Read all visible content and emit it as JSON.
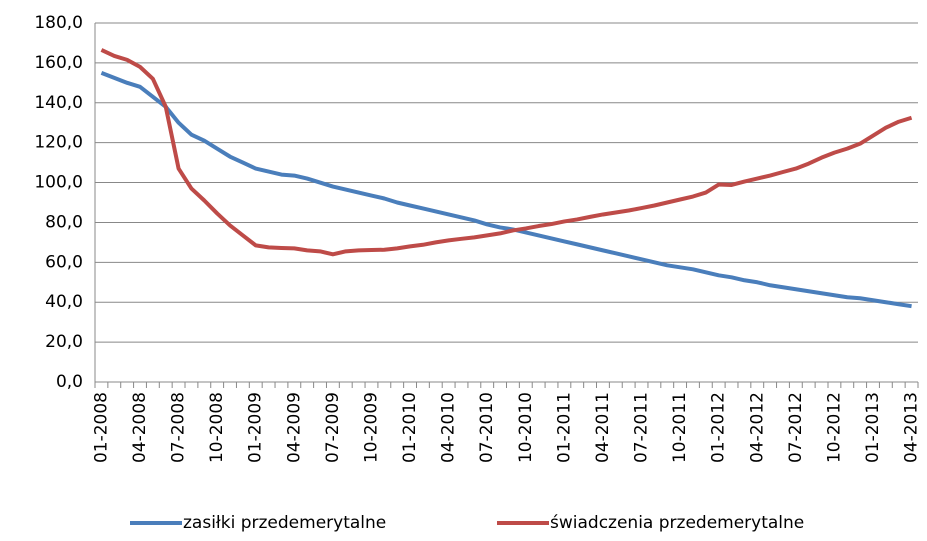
{
  "chart_data": {
    "type": "line",
    "categories": [
      "01-2008",
      null,
      null,
      "04-2008",
      null,
      null,
      "07-2008",
      null,
      null,
      "10-2008",
      null,
      null,
      "01-2009",
      null,
      null,
      "04-2009",
      null,
      null,
      "07-2009",
      null,
      null,
      "10-2009",
      null,
      null,
      "01-2010",
      null,
      null,
      "04-2010",
      null,
      null,
      "07-2010",
      null,
      null,
      "10-2010",
      null,
      null,
      "01-2011",
      null,
      null,
      "04-2011",
      null,
      null,
      "07-2011",
      null,
      null,
      "10-2011",
      null,
      null,
      "01-2012",
      null,
      null,
      "04-2012",
      null,
      null,
      "07-2012",
      null,
      null,
      "10-2012",
      null,
      null,
      "01-2013",
      null,
      null,
      "04-2013"
    ],
    "series": [
      {
        "name": "zasiłki przedemerytalne",
        "color": "#4a7ebb",
        "values": [
          155,
          152.5,
          150,
          148,
          143,
          138,
          130,
          124,
          121,
          117,
          113,
          110,
          107,
          105.5,
          104,
          103.5,
          102,
          100,
          98,
          96.5,
          95,
          93.5,
          92,
          90,
          88.5,
          87,
          85.5,
          84,
          82.5,
          81,
          79,
          77.5,
          76.5,
          75,
          73.5,
          72,
          70.5,
          69,
          67.5,
          66,
          64.5,
          63,
          61.5,
          60,
          58.5,
          57.5,
          56.5,
          55,
          53.5,
          52.5,
          51,
          50,
          48.5,
          47.5,
          46.5,
          45.5,
          44.5,
          43.5,
          42.5,
          42,
          41,
          40,
          39,
          38
        ]
      },
      {
        "name": "świadczenia przedemerytalne",
        "color": "#be4b48",
        "values": [
          166.5,
          163.5,
          161.5,
          158,
          152,
          138,
          107,
          97,
          91,
          84.5,
          78.5,
          73.5,
          68.5,
          67.5,
          67.2,
          67,
          66,
          65.5,
          64,
          65.5,
          66,
          66.2,
          66.3,
          67,
          68,
          68.8,
          70,
          71,
          71.8,
          72.5,
          73.5,
          74.5,
          76,
          77,
          78.2,
          79.2,
          80.5,
          81.5,
          82.8,
          84,
          85,
          86,
          87.2,
          88.5,
          90,
          91.5,
          93,
          95,
          99,
          98.8,
          100.5,
          102,
          103.5,
          105.3,
          107,
          109.5,
          112.5,
          115,
          117,
          119.5,
          123.5,
          127.5,
          130.5,
          132.5
        ]
      }
    ],
    "ylim": [
      0,
      180
    ],
    "yticks": [
      {
        "value": 0,
        "label": "0,0"
      },
      {
        "value": 20,
        "label": "20,0"
      },
      {
        "value": 40,
        "label": "40,0"
      },
      {
        "value": 60,
        "label": "60,0"
      },
      {
        "value": 80,
        "label": "80,0"
      },
      {
        "value": 100,
        "label": "100,0"
      },
      {
        "value": 120,
        "label": "120,0"
      },
      {
        "value": 140,
        "label": "140,0"
      },
      {
        "value": 160,
        "label": "160,0"
      },
      {
        "value": 180,
        "label": "180,0"
      }
    ],
    "grid": true,
    "legend": "bottom"
  }
}
